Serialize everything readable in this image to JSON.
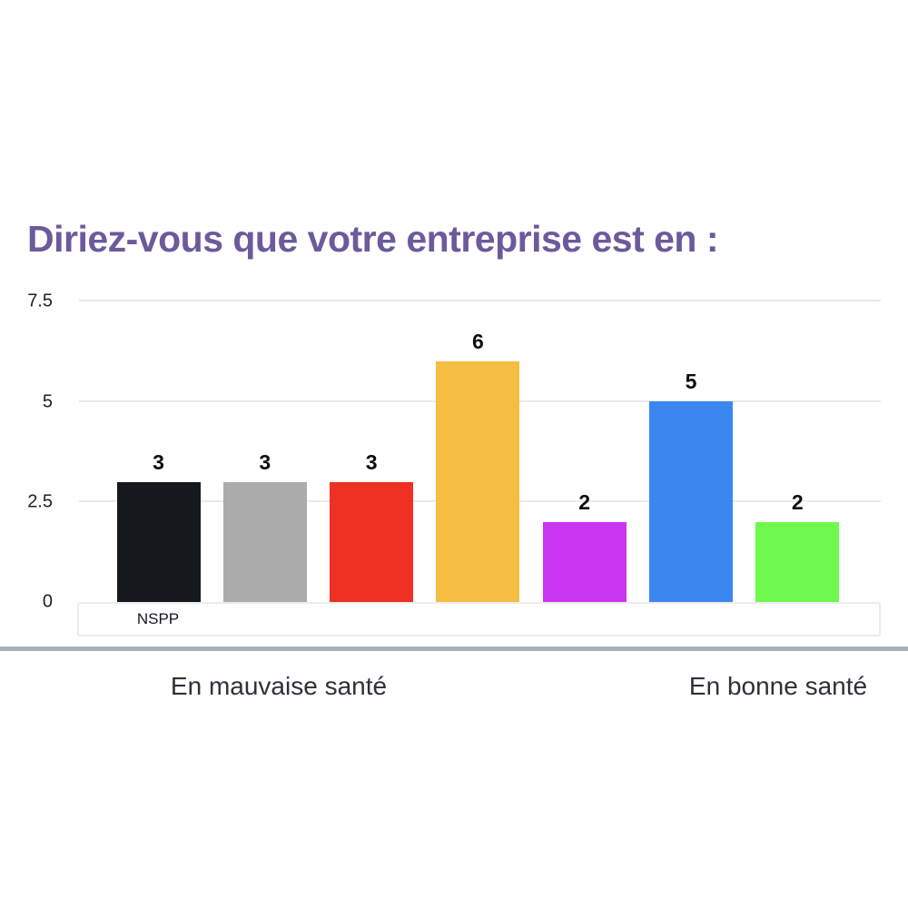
{
  "chart_data": {
    "type": "bar",
    "title": "Diriez-vous que votre entreprise est en :",
    "categories": [
      "NSPP",
      "",
      "",
      "",
      "",
      "",
      ""
    ],
    "values": [
      3,
      3,
      3,
      6,
      2,
      5,
      2
    ],
    "bar_colors": [
      "#15181c",
      "#ababab",
      "#ee3123",
      "#f5bd41",
      "#ca36f1",
      "#3b87f0",
      "#6ff84e"
    ],
    "xlabel": "",
    "ylabel": "",
    "ylim": [
      0,
      7.5
    ],
    "yticks": [
      7.5,
      5,
      2.5,
      0
    ],
    "ytick_labels": [
      "7.5",
      "5",
      "2.5",
      "0"
    ],
    "grid": true,
    "legend": false,
    "x_axis_end_labels": {
      "left": "En mauvaise santé",
      "right": "En bonne santé"
    }
  },
  "colors": {
    "title_text": "#6a5b9c",
    "gridline": "#e9e9e9",
    "divider": "#a9b1c0",
    "footer_text": "#2d3139",
    "value_label_text": "#0d0d0d"
  }
}
